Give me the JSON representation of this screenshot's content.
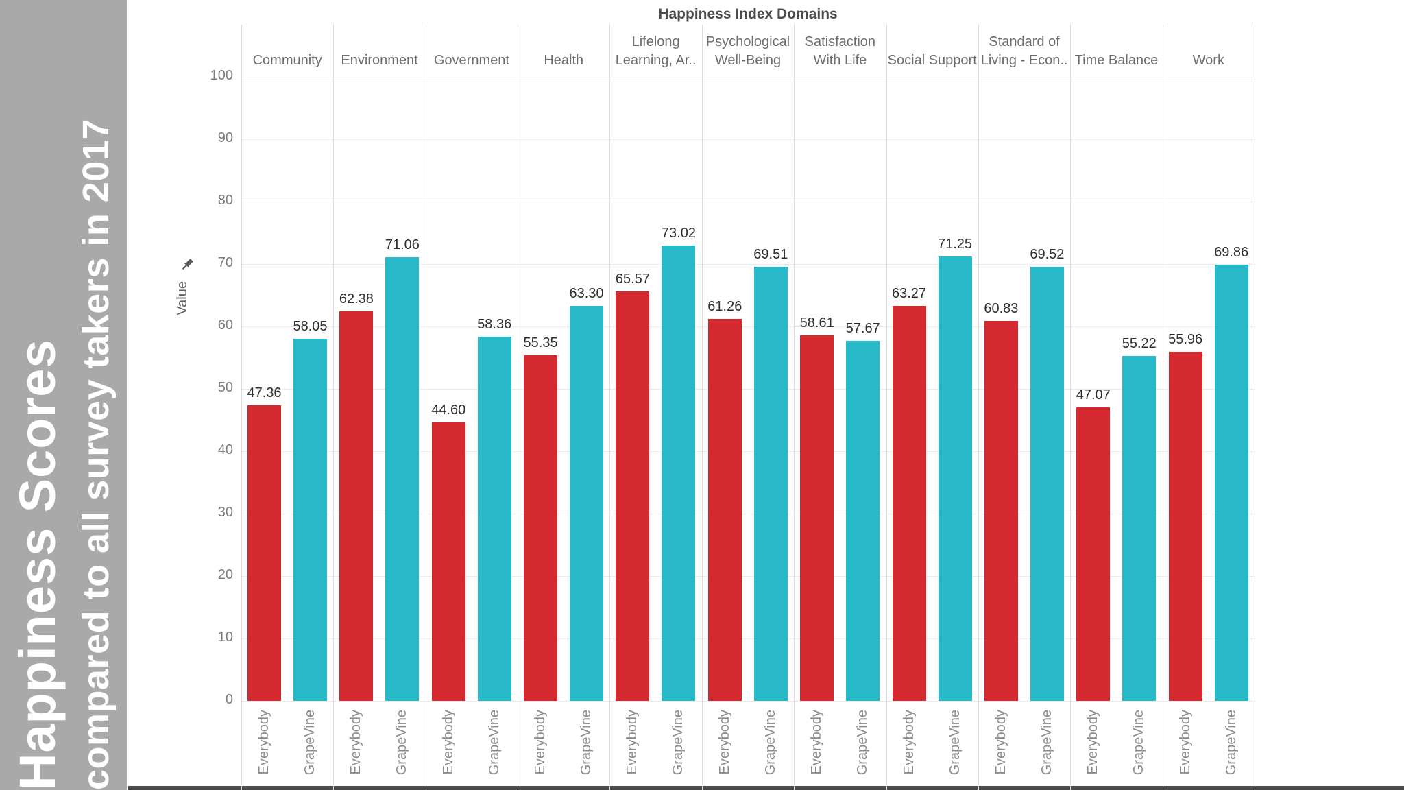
{
  "sidebar": {
    "title_line1": "Happiness Scores",
    "title_line2": "compared to all survey takers in 2017"
  },
  "icons": {
    "axis_pin": "pushpin-icon"
  },
  "colors": {
    "everybody_red": "#d4292f",
    "grapevine_cyan": "#28b9c8",
    "sidebar_gray": "#a9a9a9"
  },
  "chart_data": {
    "type": "bar",
    "title": "Happiness Index Domains",
    "xlabel": "",
    "ylabel": "Value",
    "ylim": [
      0,
      100
    ],
    "yticks": [
      0,
      10,
      20,
      30,
      40,
      50,
      60,
      70,
      80,
      90,
      100
    ],
    "grid": true,
    "legend_position": "none (series named under each bar on x-axis)",
    "categories": [
      "Community",
      "Environment",
      "Government",
      "Health",
      "Lifelong Learning, Ar..",
      "Psychological Well-Being",
      "Satisfaction With Life",
      "Social Support",
      "Standard of Living - Econ..",
      "Time Balance",
      "Work"
    ],
    "series": [
      {
        "name": "Everybody",
        "color": "#d4292f",
        "values": [
          47.36,
          62.38,
          44.6,
          55.35,
          65.57,
          61.26,
          58.61,
          63.27,
          60.83,
          47.07,
          55.96
        ]
      },
      {
        "name": "GrapeVine",
        "color": "#28b9c8",
        "values": [
          58.05,
          71.06,
          58.36,
          63.3,
          73.02,
          69.51,
          57.67,
          71.25,
          69.52,
          55.22,
          69.86
        ]
      }
    ],
    "bar_value_labels_visible": true
  }
}
